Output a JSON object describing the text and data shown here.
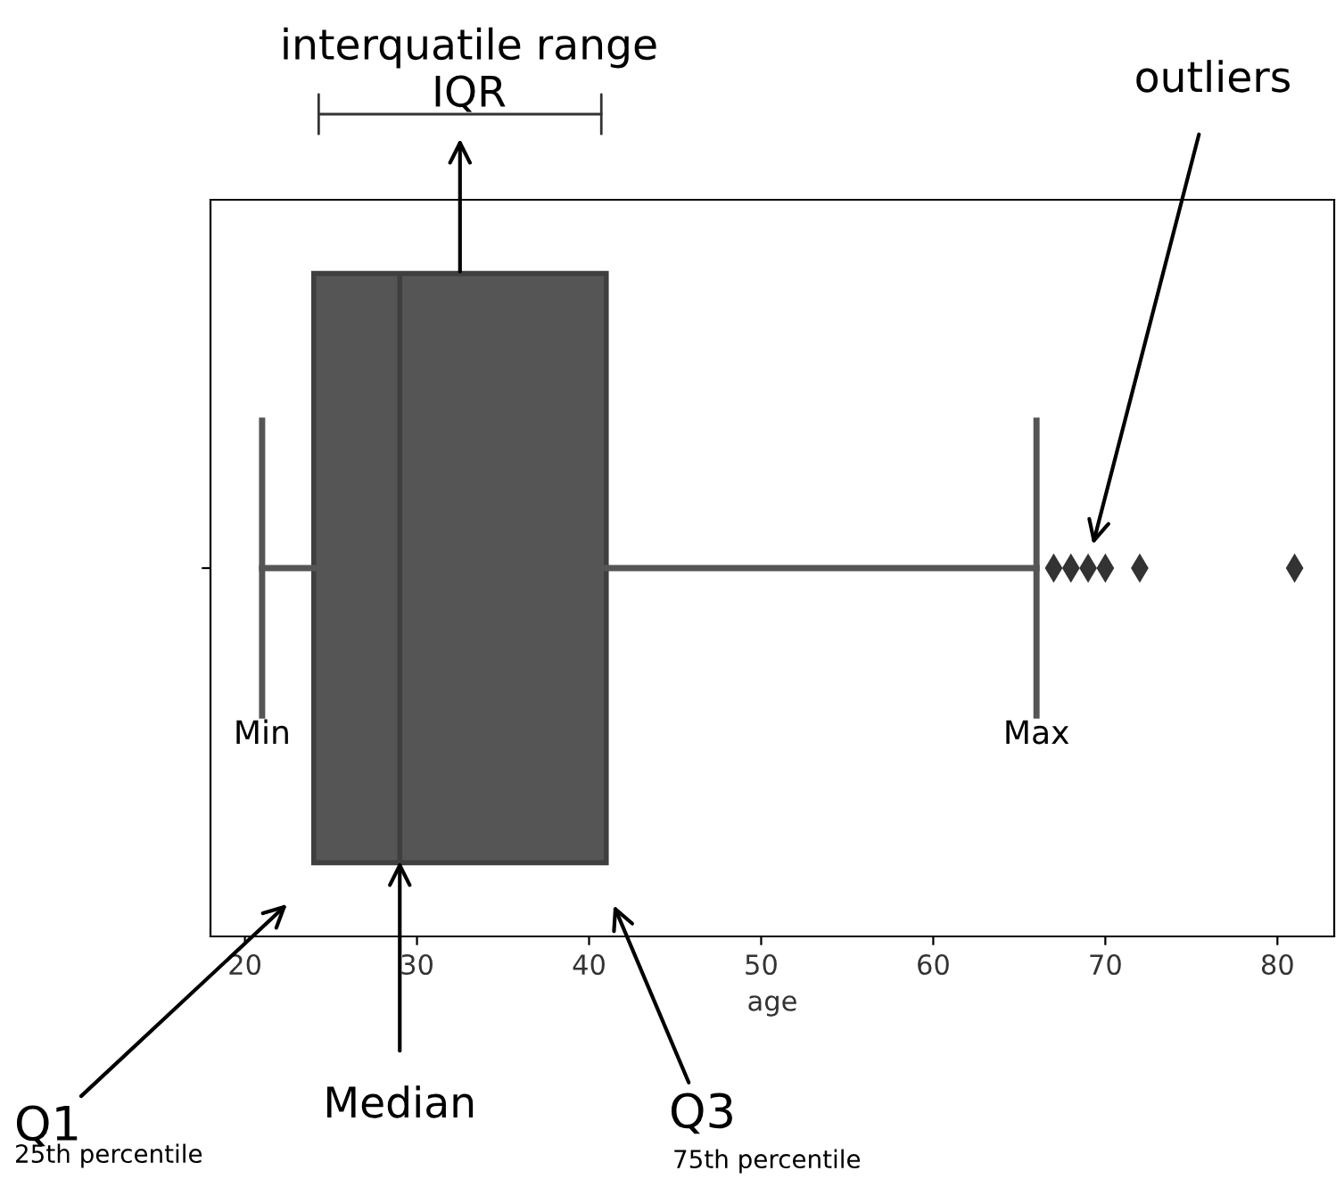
{
  "chart_data": {
    "type": "box",
    "orientation": "horizontal",
    "categories": [
      null
    ],
    "xlabel": "age",
    "boxes": [
      {
        "low": 21,
        "q1": 24,
        "median": 29,
        "q3": 41,
        "high": 66,
        "outliers": [
          67,
          68,
          69,
          70,
          72,
          81
        ]
      }
    ],
    "color": "#555555",
    "xlim": [
      18,
      83.3
    ],
    "xticks": [
      20,
      30,
      40,
      50,
      60,
      70,
      80
    ],
    "grid": false,
    "marker": "diamond",
    "annotations": [
      "interquatile range\nIQR",
      "outliers",
      "Min",
      "Max",
      "Q1",
      "25th percentile",
      "Median",
      "Q3",
      "75th percentile"
    ]
  }
}
